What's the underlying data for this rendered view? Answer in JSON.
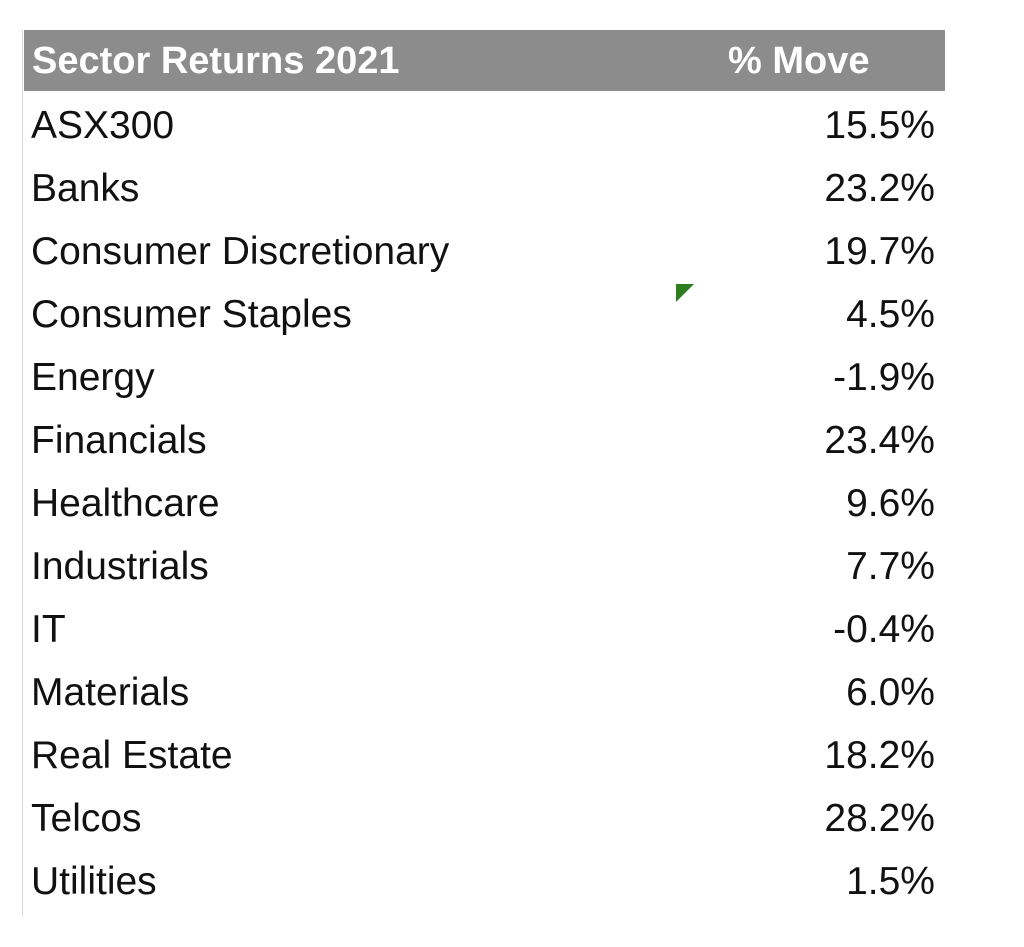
{
  "table": {
    "header": {
      "name": "Sector Returns 2021",
      "move": "% Move"
    },
    "rows": [
      {
        "name": "ASX300",
        "value": "15.5%"
      },
      {
        "name": "Banks",
        "value": "23.2%"
      },
      {
        "name": "Consumer Discretionary",
        "value": "19.7%"
      },
      {
        "name": "Consumer Staples",
        "value": "4.5%"
      },
      {
        "name": "Energy",
        "value": "-1.9%"
      },
      {
        "name": "Financials",
        "value": "23.4%"
      },
      {
        "name": "Healthcare",
        "value": "9.6%"
      },
      {
        "name": "Industrials",
        "value": "7.7%"
      },
      {
        "name": "IT",
        "value": "-0.4%"
      },
      {
        "name": "Materials",
        "value": "6.0%"
      },
      {
        "name": "Real Estate",
        "value": "18.2%"
      },
      {
        "name": "Telcos",
        "value": "28.2%"
      },
      {
        "name": "Utilities",
        "value": "1.5%"
      }
    ]
  },
  "colors": {
    "header_background": "#8c8c8c",
    "header_text": "#ffffff",
    "comment_indicator": "#2e7d1e"
  }
}
